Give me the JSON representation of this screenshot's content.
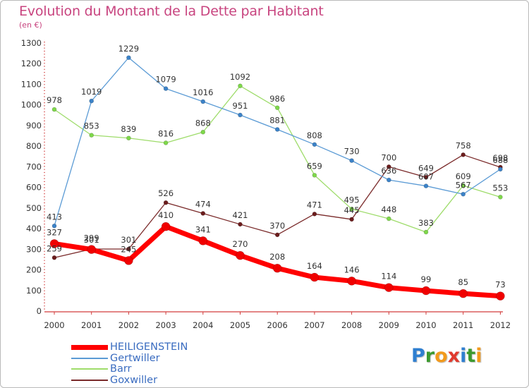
{
  "title": "Evolution du Montant de la Dette par Habitant",
  "subtitle": "(en €)",
  "chart_data": {
    "type": "line",
    "x": [
      "2000",
      "2001",
      "2002",
      "2003",
      "2004",
      "2005",
      "2006",
      "2007",
      "2008",
      "2009",
      "2010",
      "2011",
      "2012"
    ],
    "ylim": [
      0,
      1300
    ],
    "yticks": [
      "0",
      "100",
      "200",
      "300",
      "400",
      "500",
      "600",
      "700",
      "800",
      "900",
      "1000",
      "1100",
      "1200",
      "1300"
    ],
    "grid": false,
    "legend_position": "bottom-left",
    "series": [
      {
        "name": "Goxwiller",
        "color": "#7a2a2a",
        "marker": "#6b1c1c",
        "width": 1.3,
        "radius": 3,
        "values": [
          259,
          301,
          301,
          526,
          474,
          421,
          370,
          471,
          445,
          700,
          649,
          758,
          698
        ]
      },
      {
        "name": "Barr",
        "color": "#9edc6a",
        "marker": "#7ed84a",
        "width": 1.3,
        "radius": 3,
        "values": [
          978,
          853,
          839,
          816,
          868,
          1092,
          986,
          659,
          495,
          448,
          383,
          609,
          553
        ]
      },
      {
        "name": "Gertwiller",
        "color": "#5b9bd5",
        "marker": "#3b82c8",
        "width": 1.3,
        "radius": 3,
        "values": [
          413,
          1019,
          1229,
          1079,
          1016,
          951,
          881,
          808,
          730,
          636,
          607,
          567,
          688
        ]
      },
      {
        "name": "HEILIGENSTEIN",
        "color": "#ff0000",
        "marker": "#f00000",
        "width": 7,
        "radius": 6,
        "values": [
          327,
          299,
          245,
          410,
          341,
          270,
          208,
          164,
          146,
          114,
          99,
          85,
          73
        ]
      }
    ]
  },
  "legend": {
    "items": [
      {
        "label": "HEILIGENSTEIN",
        "color": "#ff0000",
        "thickness": 7
      },
      {
        "label": "Gertwiller",
        "color": "#5b9bd5",
        "thickness": 2
      },
      {
        "label": "Barr",
        "color": "#9edc6a",
        "thickness": 2
      },
      {
        "label": "Goxwiller",
        "color": "#7a2a2a",
        "thickness": 2
      }
    ]
  },
  "logo": {
    "letters": [
      "P",
      "r",
      "o",
      "x",
      "i",
      "t",
      "i"
    ],
    "colors": [
      "#2f7fd0",
      "#3c9a2f",
      "#f29a1c",
      "#e03a2e",
      "#2f7fd0",
      "#3c9a2f",
      "#f29a1c"
    ]
  }
}
